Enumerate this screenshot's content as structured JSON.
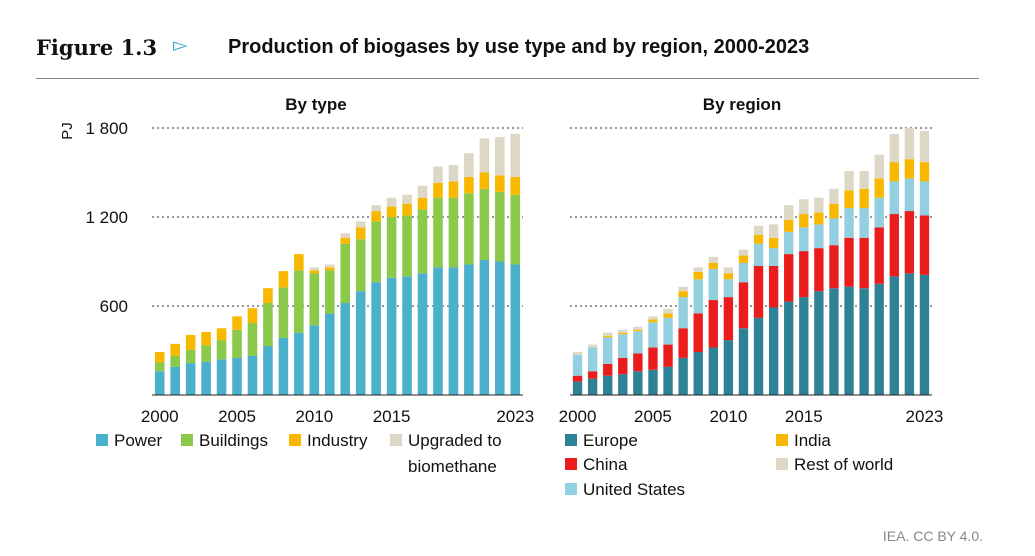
{
  "header": {
    "figure_label": "Figure 1.3",
    "title": "Production of biogases by use type and by region, 2000-2023"
  },
  "source": "IEA. CC BY 4.0.",
  "colors": {
    "power": "#4bb0cb",
    "buildings": "#8bc94a",
    "industry": "#f9b800",
    "upgraded": "#ddd8c6",
    "europe": "#2f8296",
    "china": "#ea1c1c",
    "united_states": "#92cfe0",
    "india": "#f9b800",
    "rest_of_world": "#ddd8c6",
    "arrow": "#3aa6c0"
  },
  "chart_data": [
    {
      "type": "bar",
      "stacked": true,
      "title": "By type",
      "ylabel": "PJ",
      "ylim": [
        0,
        1800
      ],
      "yticks": [
        {
          "value": 600,
          "label": "600"
        },
        {
          "value": 1200,
          "label": "1 200"
        },
        {
          "value": 1800,
          "label": "1 800"
        }
      ],
      "xtick_labels": [
        "2000",
        "2005",
        "2010",
        "2015",
        "2023"
      ],
      "x": [
        2000,
        2001,
        2002,
        2003,
        2004,
        2005,
        2006,
        2007,
        2008,
        2009,
        2010,
        2011,
        2012,
        2013,
        2014,
        2015,
        2016,
        2017,
        2018,
        2019,
        2020,
        2021,
        2022,
        2023
      ],
      "legend": {
        "position": "bottom"
      },
      "series": [
        {
          "name": "Power",
          "color": "#4bb0cb",
          "values": [
            160,
            190,
            215,
            225,
            240,
            250,
            265,
            330,
            385,
            420,
            470,
            550,
            620,
            700,
            760,
            790,
            800,
            820,
            860,
            860,
            880,
            910,
            900,
            880
          ]
        },
        {
          "name": "Buildings",
          "color": "#8bc94a",
          "values": [
            60,
            75,
            90,
            110,
            130,
            190,
            220,
            290,
            340,
            420,
            350,
            290,
            400,
            350,
            410,
            410,
            410,
            430,
            470,
            470,
            480,
            480,
            470,
            470
          ]
        },
        {
          "name": "Industry",
          "color": "#f9b800",
          "values": [
            70,
            80,
            100,
            90,
            80,
            90,
            100,
            100,
            110,
            110,
            20,
            20,
            40,
            80,
            70,
            70,
            80,
            80,
            100,
            110,
            110,
            110,
            110,
            120
          ]
        },
        {
          "name": "Upgraded to biomethane",
          "color": "#ddd8c6",
          "values": [
            0,
            0,
            0,
            0,
            0,
            0,
            0,
            0,
            0,
            0,
            20,
            20,
            30,
            40,
            40,
            60,
            60,
            80,
            110,
            110,
            160,
            230,
            260,
            290
          ]
        }
      ]
    },
    {
      "type": "bar",
      "stacked": true,
      "title": "By region",
      "ylim": [
        0,
        1800
      ],
      "xtick_labels": [
        "2000",
        "2005",
        "2010",
        "2015",
        "2023"
      ],
      "x": [
        2000,
        2001,
        2002,
        2003,
        2004,
        2005,
        2006,
        2007,
        2008,
        2009,
        2010,
        2011,
        2012,
        2013,
        2014,
        2015,
        2016,
        2017,
        2018,
        2019,
        2020,
        2021,
        2022,
        2023
      ],
      "legend": {
        "position": "bottom"
      },
      "series": [
        {
          "name": "Europe",
          "color": "#2f8296",
          "values": [
            90,
            110,
            130,
            140,
            160,
            170,
            190,
            250,
            290,
            320,
            370,
            450,
            520,
            590,
            630,
            660,
            700,
            720,
            730,
            720,
            750,
            800,
            820,
            810
          ]
        },
        {
          "name": "China",
          "color": "#ea1c1c",
          "values": [
            40,
            50,
            80,
            110,
            120,
            150,
            150,
            200,
            260,
            320,
            290,
            310,
            350,
            280,
            320,
            310,
            290,
            290,
            330,
            340,
            380,
            420,
            420,
            400
          ]
        },
        {
          "name": "United States",
          "color": "#92cfe0",
          "values": [
            140,
            160,
            180,
            160,
            150,
            170,
            180,
            210,
            230,
            210,
            120,
            130,
            150,
            120,
            150,
            160,
            160,
            180,
            200,
            200,
            200,
            220,
            220,
            230
          ]
        },
        {
          "name": "India",
          "color": "#f9b800",
          "values": [
            0,
            0,
            10,
            10,
            10,
            20,
            30,
            40,
            50,
            40,
            40,
            50,
            60,
            70,
            80,
            90,
            80,
            100,
            120,
            130,
            130,
            130,
            130,
            130
          ]
        },
        {
          "name": "Rest of world",
          "color": "#ddd8c6",
          "values": [
            20,
            20,
            20,
            20,
            20,
            20,
            30,
            30,
            30,
            40,
            40,
            40,
            60,
            90,
            100,
            100,
            100,
            100,
            130,
            120,
            160,
            190,
            210,
            210
          ]
        }
      ]
    }
  ]
}
